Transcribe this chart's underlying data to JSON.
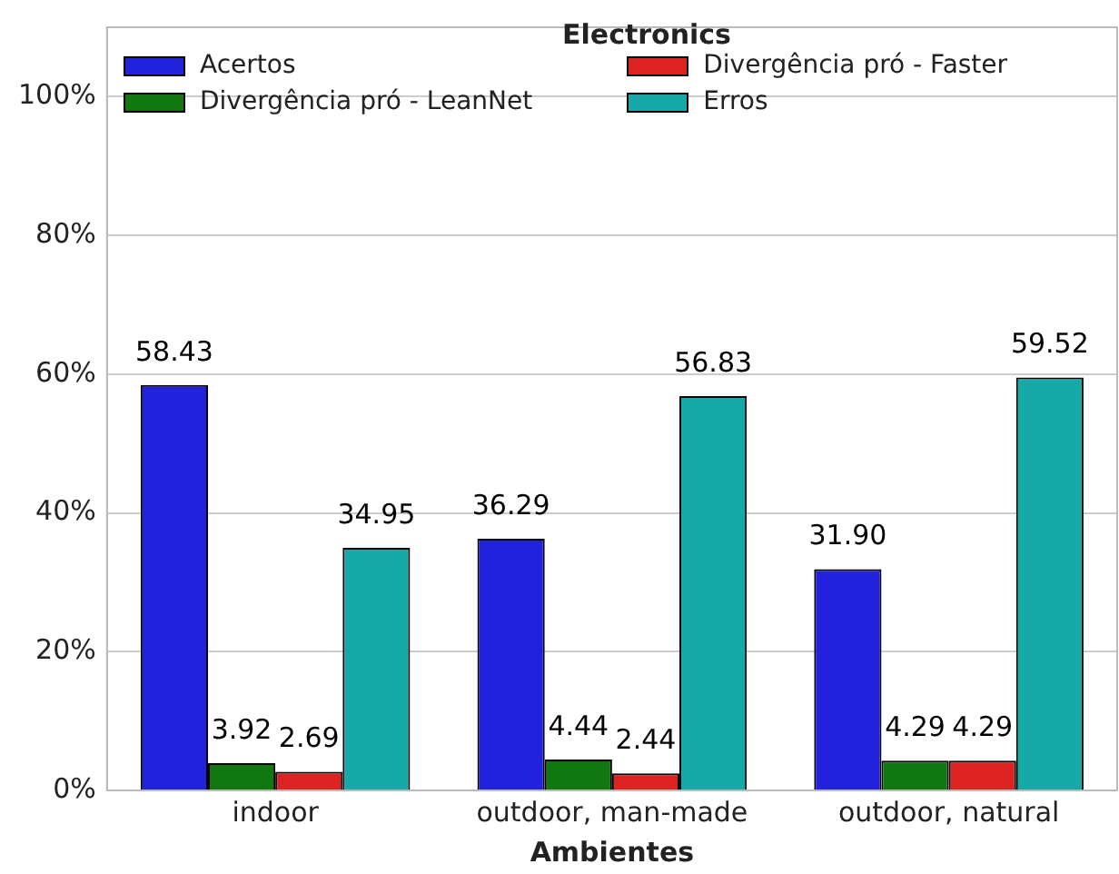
{
  "chart_data": {
    "type": "bar",
    "legend_title": "Electronics",
    "xlabel": "Ambientes",
    "categories": [
      "indoor",
      "outdoor, man-made",
      "outdoor, natural"
    ],
    "series": [
      {
        "name": "Acertos",
        "color": "#2222dd",
        "values": [
          58.43,
          36.29,
          31.9
        ],
        "value_labels": [
          "58.43",
          "36.29",
          "31.90"
        ]
      },
      {
        "name": "Divergência pró - LeanNet",
        "color": "#117711",
        "values": [
          3.92,
          4.44,
          4.29
        ],
        "value_labels": [
          "3.92",
          "4.44",
          "4.29"
        ]
      },
      {
        "name": "Divergência pró - Faster",
        "color": "#dd2222",
        "values": [
          2.69,
          2.44,
          4.29
        ],
        "value_labels": [
          "2.69",
          "2.44",
          "4.29"
        ]
      },
      {
        "name": "Erros",
        "color": "#17a8a8",
        "values": [
          34.95,
          56.83,
          59.52
        ],
        "value_labels": [
          "34.95",
          "56.83",
          "59.52"
        ]
      }
    ],
    "ylim": [
      0,
      110
    ],
    "yticks": [
      {
        "value": 0,
        "label": "0%"
      },
      {
        "value": 20,
        "label": "20%"
      },
      {
        "value": 40,
        "label": "40%"
      },
      {
        "value": 60,
        "label": "60%"
      },
      {
        "value": 80,
        "label": "80%"
      },
      {
        "value": 100,
        "label": "100%"
      }
    ],
    "grid": "y",
    "legend": "top"
  }
}
